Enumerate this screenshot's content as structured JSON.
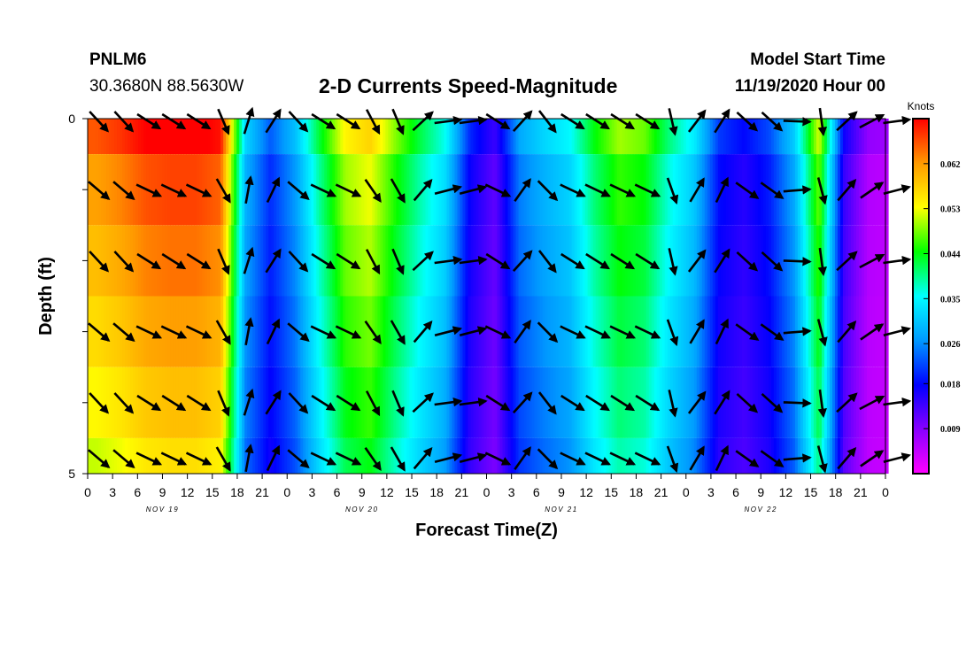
{
  "header": {
    "station": "PNLM6",
    "coordinates": "30.3680N 88.5630W",
    "title": "2-D Currents Speed-Magnitude",
    "model_start_label": "Model Start Time",
    "model_start_value": "11/19/2020 Hour 00"
  },
  "chart_data": {
    "type": "heatmap",
    "title": "2-D Currents Speed-Magnitude",
    "xlabel": "Forecast Time(Z)",
    "ylabel": "Depth (ft)",
    "x_tick_labels": [
      "0",
      "3",
      "6",
      "9",
      "12",
      "15",
      "18",
      "21",
      "0",
      "3",
      "6",
      "9",
      "12",
      "15",
      "18",
      "21",
      "0",
      "3",
      "6",
      "9",
      "12",
      "15",
      "18",
      "21",
      "0",
      "3",
      "6",
      "9",
      "12",
      "15",
      "18",
      "21",
      "0"
    ],
    "date_labels": [
      "NOV 19",
      "NOV 20",
      "NOV 21",
      "NOV 22"
    ],
    "xlim_hours": [
      0,
      96
    ],
    "ylim_ft": [
      0,
      5
    ],
    "y_tick_labels": [
      "0",
      "5"
    ],
    "colorbar": {
      "unit": "Knots",
      "ticks": [
        0.062,
        0.053,
        0.044,
        0.035,
        0.026,
        0.018,
        0.009
      ],
      "range": [
        0.0,
        0.071
      ],
      "colors": [
        "#ff00ff",
        "#8800ff",
        "#0000ff",
        "#0099ff",
        "#00ffff",
        "#00ff00",
        "#ffff00",
        "#ff9900",
        "#ff0000"
      ]
    },
    "depth_levels_ft": [
      0.0,
      1.0,
      2.0,
      3.0,
      4.0,
      5.0
    ],
    "time_hours": [
      1,
      4,
      7,
      10,
      13,
      16,
      19,
      22,
      25,
      28,
      31,
      34,
      37,
      40,
      43,
      46,
      49,
      52,
      55,
      58,
      61,
      64,
      67,
      70,
      73,
      76,
      79,
      82,
      85,
      88,
      91,
      94,
      97
    ],
    "speed_knots_by_time": [
      0.064,
      0.066,
      0.069,
      0.07,
      0.07,
      0.068,
      0.03,
      0.021,
      0.028,
      0.041,
      0.052,
      0.055,
      0.047,
      0.04,
      0.034,
      0.018,
      0.012,
      0.026,
      0.03,
      0.033,
      0.042,
      0.048,
      0.046,
      0.038,
      0.032,
      0.019,
      0.016,
      0.02,
      0.029,
      0.05,
      0.015,
      0.006,
      0.005
    ],
    "vector_direction_deg": [
      -45,
      -45,
      -30,
      -30,
      -30,
      -65,
      75,
      60,
      -45,
      -30,
      -30,
      -60,
      -65,
      45,
      10,
      10,
      -30,
      50,
      -50,
      -30,
      -30,
      -30,
      -30,
      -75,
      55,
      60,
      -40,
      -40,
      0,
      -80,
      45,
      30,
      10
    ]
  }
}
